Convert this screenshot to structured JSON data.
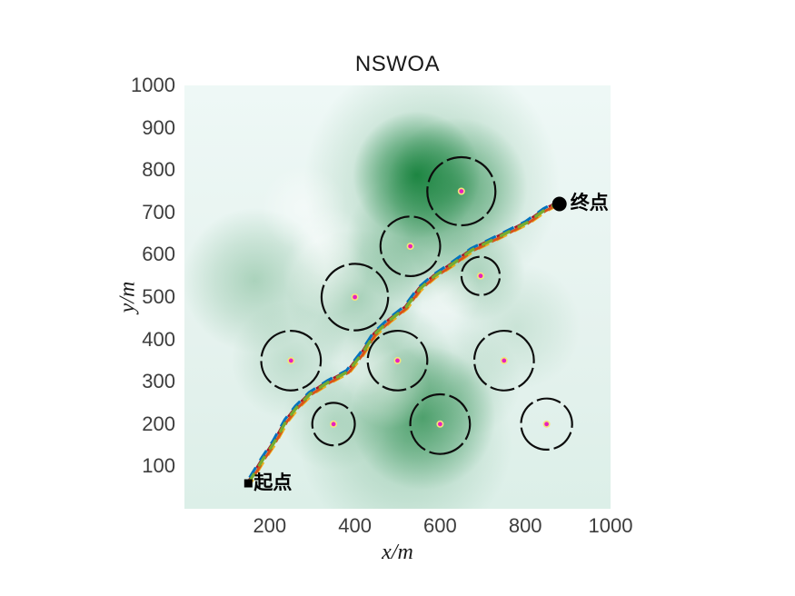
{
  "chart_data": {
    "type": "line",
    "title": "NSWOA",
    "xlabel": "x/m",
    "ylabel": "y/m",
    "xlim": [
      0,
      1000
    ],
    "ylim": [
      0,
      1000
    ],
    "xticks": [
      200,
      400,
      600,
      800,
      1000
    ],
    "yticks": [
      100,
      200,
      300,
      400,
      500,
      600,
      700,
      800,
      900,
      1000
    ],
    "grid": false,
    "legend": "none",
    "start": {
      "x": 150,
      "y": 60,
      "label": "起点",
      "marker": "filled-square",
      "color": "#000000"
    },
    "end": {
      "x": 880,
      "y": 720,
      "label": "终点",
      "marker": "filled-circle",
      "color": "#000000"
    },
    "obstacles": [
      {
        "x": 650,
        "y": 750,
        "r": 80
      },
      {
        "x": 530,
        "y": 620,
        "r": 70
      },
      {
        "x": 695,
        "y": 550,
        "r": 45
      },
      {
        "x": 400,
        "y": 500,
        "r": 78
      },
      {
        "x": 250,
        "y": 350,
        "r": 70
      },
      {
        "x": 500,
        "y": 350,
        "r": 70
      },
      {
        "x": 750,
        "y": 350,
        "r": 70
      },
      {
        "x": 350,
        "y": 200,
        "r": 50
      },
      {
        "x": 600,
        "y": 200,
        "r": 70
      },
      {
        "x": 850,
        "y": 200,
        "r": 60
      }
    ],
    "obstacle_style": {
      "stroke": "#0d0d0d",
      "center_fill": "#E820C0",
      "center_stroke": "#F5E37A"
    },
    "path": {
      "style": "dashed",
      "colors": [
        "#A2142F",
        "#EDB120",
        "#D95319",
        "#0072BD",
        "#77AC30"
      ],
      "points": [
        [
          150,
          60
        ],
        [
          185,
          118
        ],
        [
          211,
          157
        ],
        [
          239,
          208
        ],
        [
          264,
          240
        ],
        [
          296,
          272
        ],
        [
          339,
          300
        ],
        [
          384,
          324
        ],
        [
          416,
          365
        ],
        [
          446,
          412
        ],
        [
          480,
          444
        ],
        [
          520,
          476
        ],
        [
          552,
          519
        ],
        [
          586,
          549
        ],
        [
          633,
          581
        ],
        [
          676,
          612
        ],
        [
          719,
          633
        ],
        [
          761,
          654
        ],
        [
          804,
          676
        ],
        [
          846,
          706
        ],
        [
          878,
          723
        ]
      ]
    },
    "threat_field": {
      "green": "#0E7D35",
      "base_stops": [
        {
          "offset": "0%",
          "color": "#eef8f6"
        },
        {
          "offset": "60%",
          "color": "#e5f2ee"
        },
        {
          "offset": "100%",
          "color": "#dcefe8"
        }
      ],
      "green_blobs": [
        [
          580,
          770,
          300,
          0.3
        ],
        [
          545,
          788,
          150,
          0.88
        ],
        [
          640,
          758,
          165,
          0.55
        ],
        [
          530,
          635,
          150,
          0.32
        ],
        [
          400,
          500,
          160,
          0.3
        ],
        [
          165,
          540,
          170,
          0.28
        ],
        [
          560,
          215,
          170,
          0.62
        ],
        [
          520,
          160,
          250,
          0.26
        ],
        [
          500,
          350,
          130,
          0.24
        ],
        [
          250,
          350,
          140,
          0.18
        ],
        [
          350,
          210,
          120,
          0.16
        ],
        [
          690,
          555,
          110,
          0.22
        ],
        [
          780,
          430,
          150,
          0.13
        ],
        [
          660,
          300,
          130,
          0.15
        ]
      ],
      "white_ridges": [
        [
          280,
          710,
          100,
          0.45
        ],
        [
          335,
          630,
          85,
          0.4
        ],
        [
          330,
          555,
          100,
          0.45
        ],
        [
          480,
          285,
          95,
          0.45
        ],
        [
          610,
          505,
          85,
          0.4
        ],
        [
          420,
          345,
          80,
          0.35
        ]
      ]
    },
    "text_colors": {
      "title": "#1a1a1a",
      "ticks": "#3d3d3d",
      "axis_labels": "#1a1a1a"
    }
  }
}
